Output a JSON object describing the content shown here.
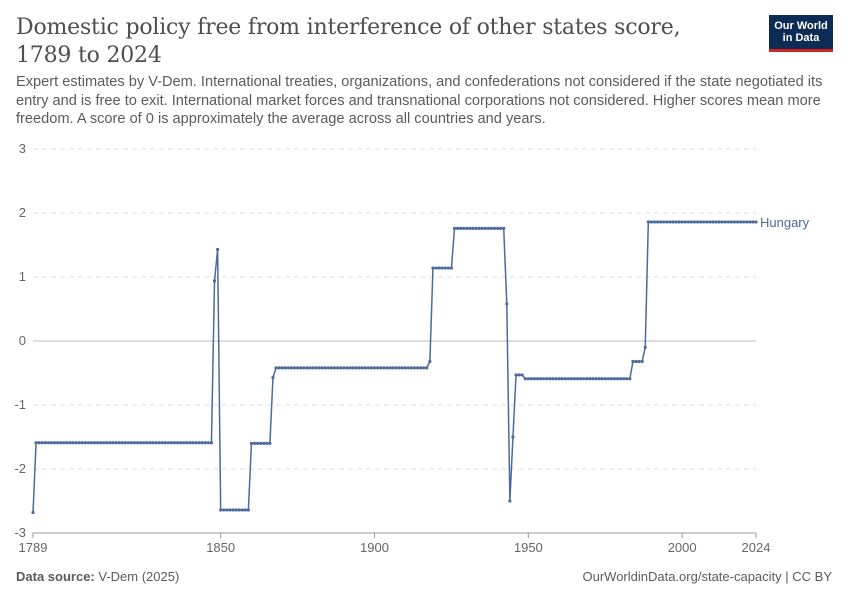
{
  "header": {
    "title": "Domestic policy free from interference of other states score, 1789 to 2024",
    "subtitle": "Expert estimates by V-Dem. International treaties, organizations, and confederations not considered if the state negotiated its entry and is free to exit. International market forces and transnational corporations not considered. Higher scores mean more freedom. A score of 0 is approximately the average across all countries and years."
  },
  "logo": {
    "line1": "Our World",
    "line2": "in Data"
  },
  "footer": {
    "source_label": "Data source:",
    "source_value": "V-Dem (2025)",
    "link": "OurWorldinData.org/state-capacity | CC BY"
  },
  "colors": {
    "series": "#4c6a9c",
    "grid": "#dddddd",
    "zero_line": "#bdbdbd",
    "axis_text": "#666666"
  },
  "chart_data": {
    "type": "line",
    "title": "Domestic policy free from interference of other states score, 1789 to 2024",
    "xlim": [
      1789,
      2024
    ],
    "ylim": [
      -3,
      3
    ],
    "x_ticks": [
      1789,
      1850,
      1900,
      1950,
      2000,
      2024
    ],
    "y_ticks": [
      3,
      2,
      1,
      0,
      -1,
      -2,
      -3
    ],
    "grid": true,
    "series": [
      {
        "name": "Hungary",
        "segments": [
          {
            "start": 1789,
            "end": 1789,
            "value": -2.68
          },
          {
            "start": 1790,
            "end": 1847,
            "value": -1.59
          },
          {
            "start": 1848,
            "end": 1848,
            "value": 0.94
          },
          {
            "start": 1849,
            "end": 1849,
            "value": 1.43
          },
          {
            "start": 1850,
            "end": 1859,
            "value": -2.64
          },
          {
            "start": 1860,
            "end": 1866,
            "value": -1.6
          },
          {
            "start": 1867,
            "end": 1867,
            "value": -0.57
          },
          {
            "start": 1868,
            "end": 1917,
            "value": -0.42
          },
          {
            "start": 1918,
            "end": 1918,
            "value": -0.32
          },
          {
            "start": 1919,
            "end": 1925,
            "value": 1.14
          },
          {
            "start": 1926,
            "end": 1942,
            "value": 1.76
          },
          {
            "start": 1943,
            "end": 1943,
            "value": 0.58
          },
          {
            "start": 1944,
            "end": 1944,
            "value": -2.5
          },
          {
            "start": 1945,
            "end": 1945,
            "value": -1.5
          },
          {
            "start": 1946,
            "end": 1948,
            "value": -0.53
          },
          {
            "start": 1949,
            "end": 1983,
            "value": -0.59
          },
          {
            "start": 1984,
            "end": 1987,
            "value": -0.32
          },
          {
            "start": 1988,
            "end": 1988,
            "value": -0.1
          },
          {
            "start": 1989,
            "end": 2024,
            "value": 1.86
          }
        ]
      }
    ]
  }
}
